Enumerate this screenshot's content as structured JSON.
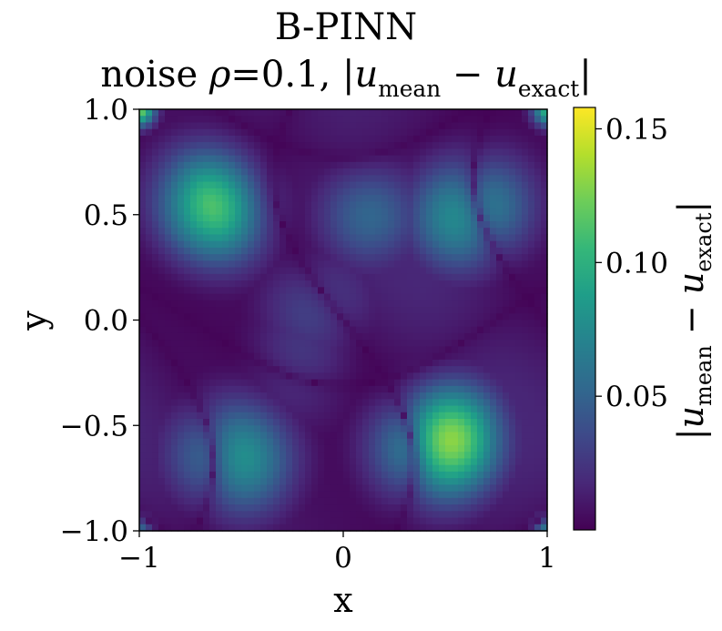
{
  "chart_data": {
    "type": "heatmap",
    "title": "B-PINN",
    "subtitle": {
      "prefix": "noise ",
      "rho": "ρ",
      "eq": "=0.1, |",
      "u": "u",
      "mean": "mean",
      "minus": " − ",
      "exact": "exact",
      "suffix": "|"
    },
    "xlabel": "x",
    "ylabel": "y",
    "xlim": [
      -1.0,
      1.0
    ],
    "ylim": [
      -1.0,
      1.0
    ],
    "xticks": [
      {
        "value": -1,
        "label": "−1"
      },
      {
        "value": 0,
        "label": "0"
      },
      {
        "value": 1,
        "label": "1"
      }
    ],
    "yticks": [
      {
        "value": 1.0,
        "label": "1.0"
      },
      {
        "value": 0.5,
        "label": "0.5"
      },
      {
        "value": 0.0,
        "label": "0.0"
      },
      {
        "value": -0.5,
        "label": "−0.5"
      },
      {
        "value": -1.0,
        "label": "−1.0"
      }
    ],
    "colorbar": {
      "colormap": "viridis",
      "vmin": 0.0,
      "vmax": 0.158,
      "ticks": [
        {
          "value": 0.05,
          "label": "0.05"
        },
        {
          "value": 0.1,
          "label": "0.10"
        },
        {
          "value": 0.15,
          "label": "0.15"
        }
      ],
      "label": {
        "open": "|",
        "u": "u",
        "mean": "mean",
        "minus": " − ",
        "exact": "exact",
        "close": "|"
      }
    },
    "hotspots": [
      {
        "x": 0.47,
        "y": -0.57,
        "value": 0.158
      },
      {
        "x": -0.62,
        "y": 0.55,
        "value": 0.115
      },
      {
        "x": 0.62,
        "y": 0.52,
        "value": 0.105
      },
      {
        "x": -0.55,
        "y": -0.65,
        "value": 0.1
      },
      {
        "x": 0.12,
        "y": 0.52,
        "value": 0.055
      },
      {
        "x": -0.12,
        "y": 0.05,
        "value": 0.04
      },
      {
        "x": -0.2,
        "y": -0.2,
        "value": 0.035
      },
      {
        "x": -1.0,
        "y": 1.0,
        "value": 0.15
      },
      {
        "x": 1.0,
        "y": 1.0,
        "value": 0.12
      },
      {
        "x": -1.0,
        "y": -1.0,
        "value": 0.1
      },
      {
        "x": 1.0,
        "y": -1.0,
        "value": 0.12
      }
    ],
    "grid": false
  }
}
